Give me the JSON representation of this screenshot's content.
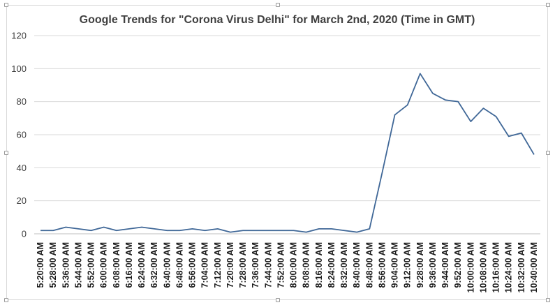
{
  "chart_data": {
    "type": "line",
    "title": "Google Trends for \"Corona Virus Delhi\" for March 2nd, 2020 (Time in GMT)",
    "xlabel": "",
    "ylabel": "",
    "ylim": [
      0,
      120
    ],
    "yticks": [
      0,
      20,
      40,
      60,
      80,
      100,
      120
    ],
    "grid": true,
    "legend": "none",
    "categories": [
      "5:20:00 AM",
      "5:28:00 AM",
      "5:36:00 AM",
      "5:44:00 AM",
      "5:52:00 AM",
      "6:00:00 AM",
      "6:08:00 AM",
      "6:16:00 AM",
      "6:24:00 AM",
      "6:32:00 AM",
      "6:40:00 AM",
      "6:48:00 AM",
      "6:56:00 AM",
      "7:04:00 AM",
      "7:12:00 AM",
      "7:20:00 AM",
      "7:28:00 AM",
      "7:36:00 AM",
      "7:44:00 AM",
      "7:52:00 AM",
      "8:00:00 AM",
      "8:08:00 AM",
      "8:16:00 AM",
      "8:24:00 AM",
      "8:32:00 AM",
      "8:40:00 AM",
      "8:48:00 AM",
      "8:56:00 AM",
      "9:04:00 AM",
      "9:12:00 AM",
      "9:28:00 AM",
      "9:36:00 AM",
      "9:44:00 AM",
      "9:52:00 AM",
      "10:00:00 AM",
      "10:08:00 AM",
      "10:16:00 AM",
      "10:24:00 AM",
      "10:32:00 AM",
      "10:40:00 AM"
    ],
    "values": [
      2,
      2,
      4,
      3,
      2,
      4,
      2,
      3,
      4,
      3,
      2,
      2,
      3,
      2,
      3,
      1,
      2,
      2,
      2,
      2,
      2,
      1,
      3,
      3,
      2,
      1,
      3,
      37,
      72,
      78,
      97,
      85,
      81,
      80,
      68,
      76,
      71,
      59,
      61,
      48
    ],
    "colors": {
      "line": "#3f6797",
      "grid": "#d9d9d9",
      "axis": "#bfbfbf"
    }
  }
}
